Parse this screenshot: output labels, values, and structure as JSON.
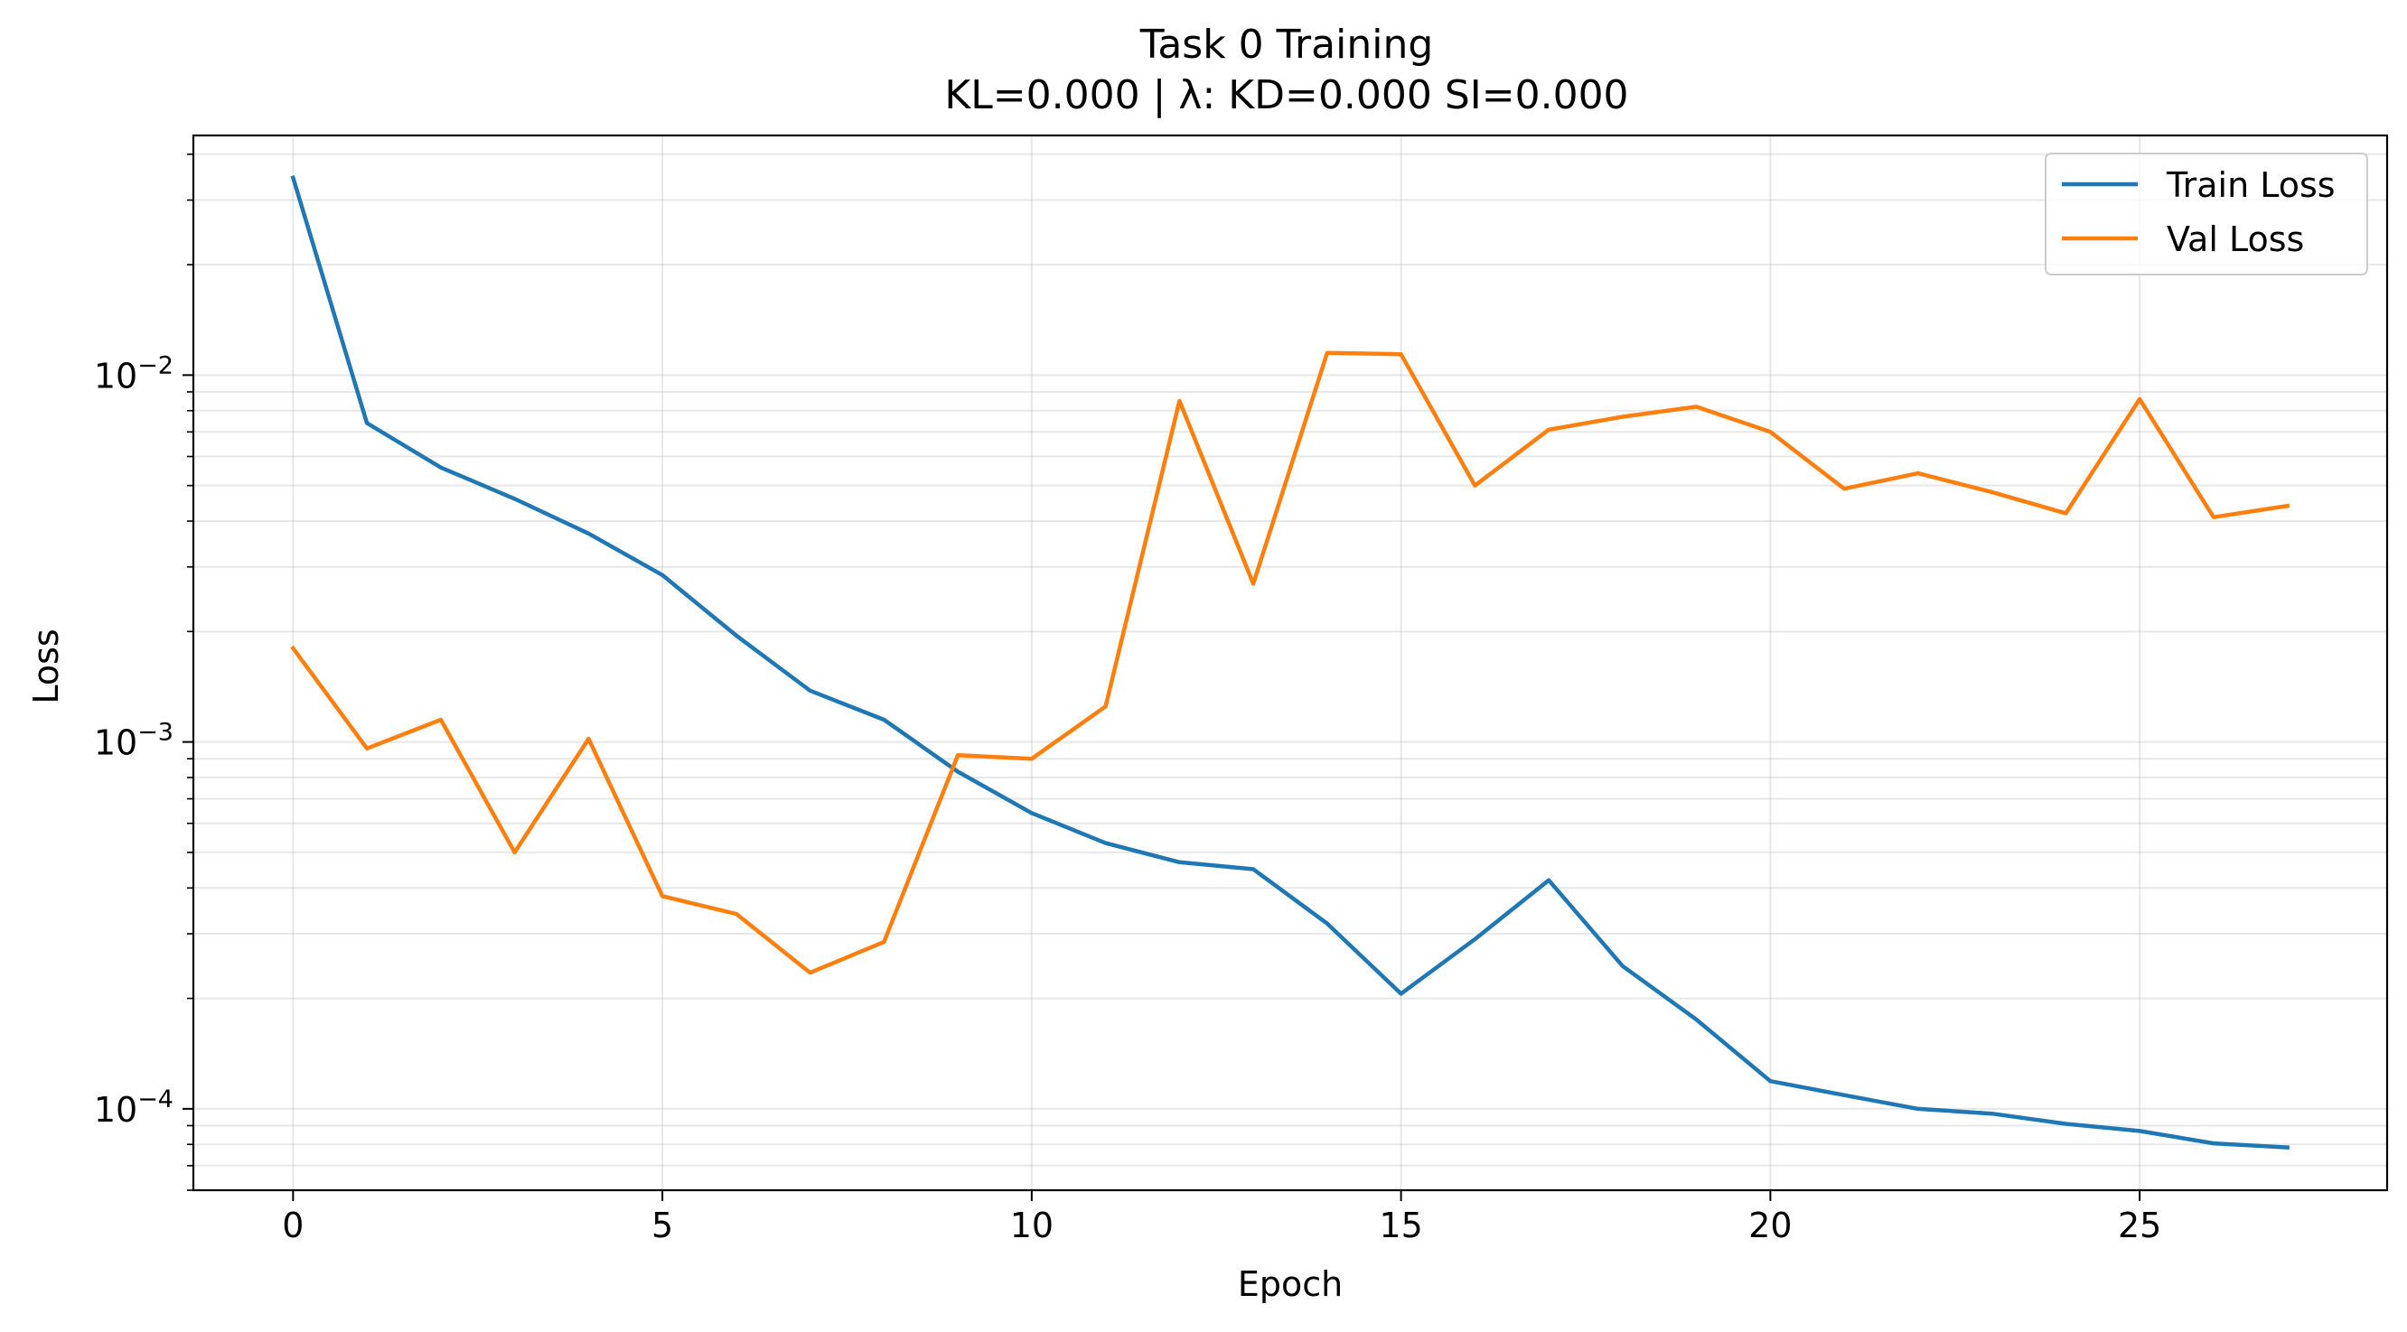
{
  "chart_data": {
    "type": "line",
    "title": "Task 0 Training",
    "subtitle": "KL=0.000 | λ: KD=0.000 SI=0.000",
    "xlabel": "Epoch",
    "ylabel": "Loss",
    "xlim": [
      -1.35,
      28.35
    ],
    "ylim": [
      6e-05,
      0.045
    ],
    "yscale": "log",
    "grid": true,
    "legend": "top-right",
    "x_ticks": [
      0,
      5,
      10,
      15,
      20,
      25
    ],
    "x_tick_labels": [
      "0",
      "5",
      "10",
      "15",
      "20",
      "25"
    ],
    "y_ticks": [
      {
        "value": 0.01,
        "base": "10",
        "exp": "−2"
      },
      {
        "value": 0.001,
        "base": "10",
        "exp": "−3"
      },
      {
        "value": 0.0001,
        "base": "10",
        "exp": "−4"
      }
    ],
    "x": [
      0,
      1,
      2,
      3,
      4,
      5,
      6,
      7,
      8,
      9,
      10,
      11,
      12,
      13,
      14,
      15,
      16,
      17,
      18,
      19,
      20,
      21,
      22,
      23,
      24,
      25,
      26,
      27
    ],
    "series": [
      {
        "name": "Train Loss",
        "color": "#1f77b4",
        "values": [
          0.0345,
          0.0074,
          0.0056,
          0.0046,
          0.0037,
          0.00285,
          0.00195,
          0.00138,
          0.00115,
          0.00083,
          0.00064,
          0.00053,
          0.00047,
          0.00045,
          0.00032,
          0.000206,
          0.00029,
          0.00042,
          0.000245,
          0.000175,
          0.000119,
          0.000109,
          0.0001,
          9.7e-05,
          9.1e-05,
          8.7e-05,
          8.05e-05,
          7.85e-05
        ]
      },
      {
        "name": "Val Loss",
        "color": "#ff7f0e",
        "values": [
          0.0018,
          0.00096,
          0.00115,
          0.0005,
          0.00102,
          0.00038,
          0.00034,
          0.000235,
          0.000285,
          0.00092,
          0.0009,
          0.00125,
          0.0085,
          0.0027,
          0.0115,
          0.0114,
          0.005,
          0.0071,
          0.0077,
          0.0082,
          0.007,
          0.0049,
          0.0054,
          0.0048,
          0.0042,
          0.0086,
          0.0041,
          0.0044
        ]
      }
    ]
  }
}
